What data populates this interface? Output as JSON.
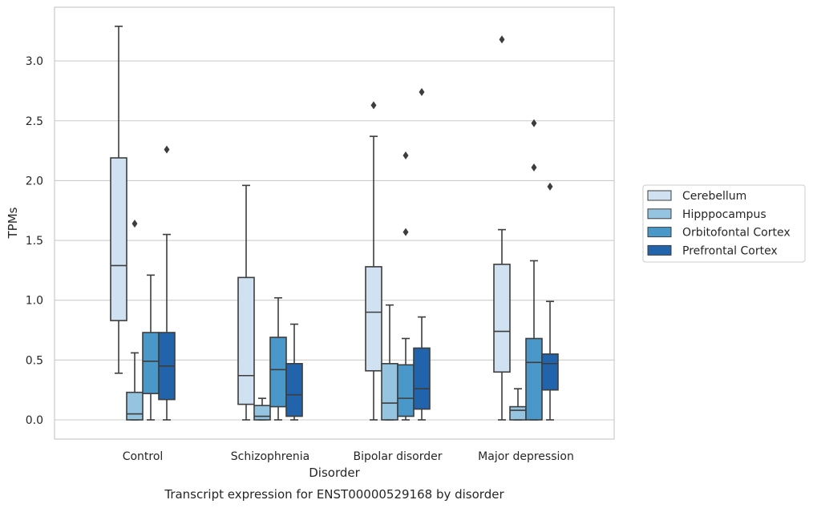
{
  "chart_data": {
    "type": "boxplot",
    "title": "",
    "caption": "Transcript expression for ENST00000529168 by disorder",
    "xlabel": "Disorder",
    "ylabel": "TPMs",
    "ylim": [
      -0.16,
      3.45
    ],
    "yticks": [
      "0.0",
      "0.5",
      "1.0",
      "1.5",
      "2.0",
      "2.5",
      "3.0"
    ],
    "grid": "horizontal",
    "legend_position": "right",
    "categories": [
      "Control",
      "Schizophrenia",
      "Bipolar disorder",
      "Major depression"
    ],
    "series": [
      {
        "name": "Cerebellum",
        "color": "#d0e1f2",
        "boxes": [
          {
            "whislo": 0.39,
            "q1": 0.83,
            "med": 1.29,
            "q3": 2.19,
            "whishi": 3.29,
            "fliers": []
          },
          {
            "whislo": 0.0,
            "q1": 0.13,
            "med": 0.37,
            "q3": 1.19,
            "whishi": 1.96,
            "fliers": []
          },
          {
            "whislo": 0.0,
            "q1": 0.41,
            "med": 0.9,
            "q3": 1.28,
            "whishi": 2.37,
            "fliers": [
              2.63
            ]
          },
          {
            "whislo": 0.0,
            "q1": 0.4,
            "med": 0.74,
            "q3": 1.3,
            "whishi": 1.59,
            "fliers": [
              3.18
            ]
          }
        ]
      },
      {
        "name": "Hipppocampus",
        "color": "#94c4df",
        "boxes": [
          {
            "whislo": 0.0,
            "q1": 0.0,
            "med": 0.05,
            "q3": 0.23,
            "whishi": 0.56,
            "fliers": [
              1.64
            ]
          },
          {
            "whislo": 0.0,
            "q1": 0.0,
            "med": 0.03,
            "q3": 0.12,
            "whishi": 0.18,
            "fliers": []
          },
          {
            "whislo": 0.0,
            "q1": 0.0,
            "med": 0.14,
            "q3": 0.47,
            "whishi": 0.96,
            "fliers": []
          },
          {
            "whislo": 0.0,
            "q1": 0.0,
            "med": 0.08,
            "q3": 0.11,
            "whishi": 0.26,
            "fliers": []
          }
        ]
      },
      {
        "name": "Orbitofontal Cortex",
        "color": "#4a98c9",
        "boxes": [
          {
            "whislo": 0.0,
            "q1": 0.22,
            "med": 0.49,
            "q3": 0.73,
            "whishi": 1.21,
            "fliers": []
          },
          {
            "whislo": 0.0,
            "q1": 0.11,
            "med": 0.42,
            "q3": 0.69,
            "whishi": 1.02,
            "fliers": []
          },
          {
            "whislo": 0.0,
            "q1": 0.03,
            "med": 0.18,
            "q3": 0.46,
            "whishi": 0.68,
            "fliers": [
              1.57,
              2.21
            ]
          },
          {
            "whislo": 0.0,
            "q1": 0.0,
            "med": 0.48,
            "q3": 0.68,
            "whishi": 1.33,
            "fliers": [
              2.11,
              2.48
            ]
          }
        ]
      },
      {
        "name": "Prefrontal Cortex",
        "color": "#2164ab",
        "boxes": [
          {
            "whislo": 0.0,
            "q1": 0.17,
            "med": 0.45,
            "q3": 0.73,
            "whishi": 1.55,
            "fliers": [
              2.26
            ]
          },
          {
            "whislo": 0.0,
            "q1": 0.03,
            "med": 0.21,
            "q3": 0.47,
            "whishi": 0.8,
            "fliers": []
          },
          {
            "whislo": 0.0,
            "q1": 0.09,
            "med": 0.26,
            "q3": 0.6,
            "whishi": 0.86,
            "fliers": [
              2.74
            ]
          },
          {
            "whislo": 0.0,
            "q1": 0.25,
            "med": 0.47,
            "q3": 0.55,
            "whishi": 0.99,
            "fliers": [
              1.95
            ]
          }
        ]
      }
    ]
  }
}
